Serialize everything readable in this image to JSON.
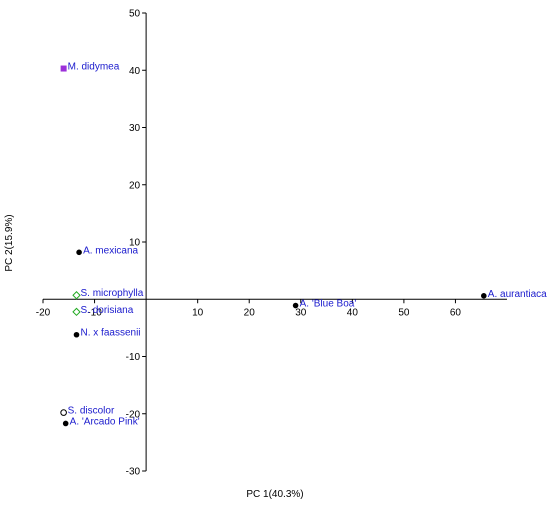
{
  "chart_data": {
    "type": "scatter",
    "title": "",
    "xlabel": "PC 1(40.3%)",
    "ylabel": "PC 2(15.9%)",
    "xlim": [
      -20,
      70
    ],
    "ylim": [
      -30,
      50
    ],
    "x_ticks": [
      -20,
      -10,
      10,
      20,
      30,
      40,
      50,
      60
    ],
    "y_ticks": [
      -30,
      -20,
      -10,
      10,
      20,
      30,
      40,
      50
    ],
    "grid": false,
    "label_color": "#1a1acd",
    "points": [
      {
        "label": "M. didymea",
        "x": -16,
        "y": 40.3,
        "marker": "square",
        "color": "#9b30d9"
      },
      {
        "label": "A. mexicana",
        "x": -13,
        "y": 8.2,
        "marker": "circle",
        "color": "#000000"
      },
      {
        "label": "S. microphylla",
        "x": -13.5,
        "y": 0.7,
        "marker": "diamond-open",
        "color": "#22aa22"
      },
      {
        "label": "S. dorisiana",
        "x": -13.5,
        "y": -2.2,
        "marker": "diamond-open",
        "color": "#22aa22"
      },
      {
        "label": "N. x faassenii",
        "x": -13.5,
        "y": -6.2,
        "marker": "circle",
        "color": "#000000"
      },
      {
        "label": "S. discolor",
        "x": -16,
        "y": -19.8,
        "marker": "circle-open",
        "color": "#000000"
      },
      {
        "label": "A. 'Arcado Pink'",
        "x": -15.6,
        "y": -21.7,
        "marker": "circle",
        "color": "#000000"
      },
      {
        "label": "A. 'Blue Boa'",
        "x": 29,
        "y": -1.1,
        "marker": "circle",
        "color": "#000000"
      },
      {
        "label": "A. aurantiaca",
        "x": 65.5,
        "y": 0.6,
        "marker": "circle",
        "color": "#000000"
      }
    ]
  }
}
